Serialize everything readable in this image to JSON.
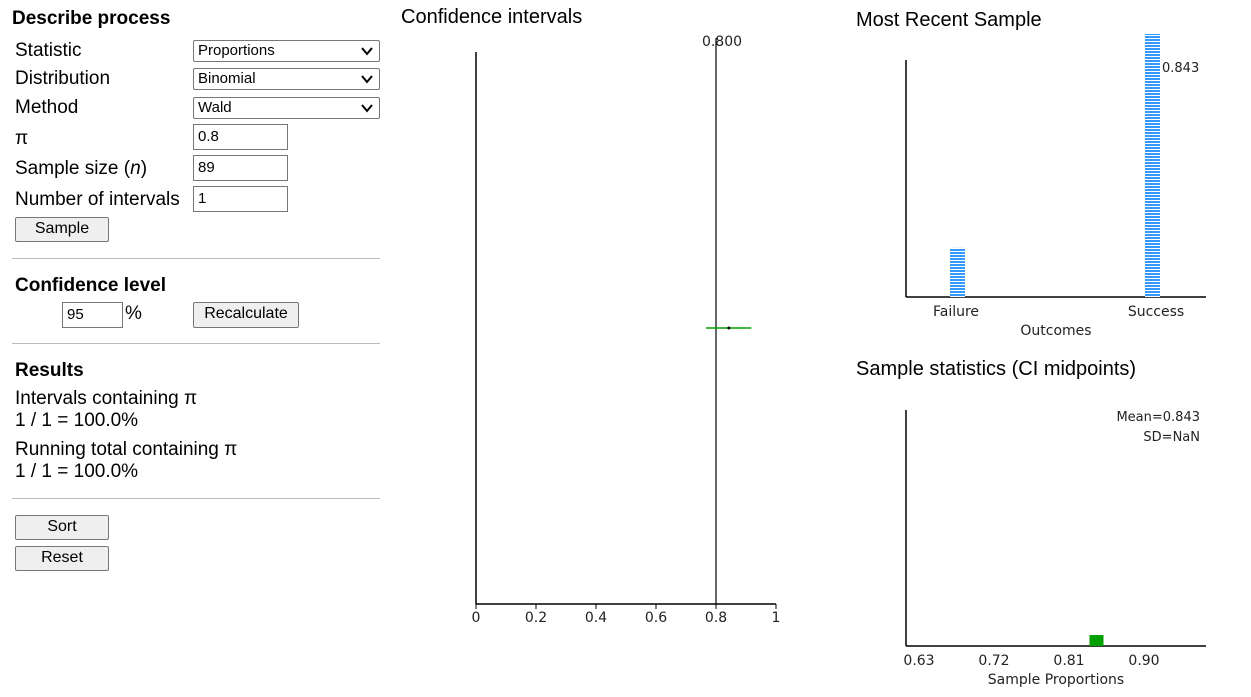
{
  "left": {
    "describe_title": "Describe process",
    "statistic_label": "Statistic",
    "statistic_value": "Proportions",
    "distribution_label": "Distribution",
    "distribution_value": "Binomial",
    "method_label": "Method",
    "method_value": "Wald",
    "pi_label": "π",
    "pi_value": "0.8",
    "sample_size_label": "Sample size (",
    "sample_size_n": "n",
    "sample_size_close": ")",
    "sample_size_value": "89",
    "num_intervals_label": "Number of intervals",
    "num_intervals_value": "1",
    "sample_button": "Sample",
    "confidence_title": "Confidence level",
    "confidence_value": "95",
    "percent_sign": "%",
    "recalculate_button": "Recalculate",
    "results_title": "Results",
    "intervals_containing_label": "Intervals containing π",
    "intervals_containing_value": "1 / 1 = 100.0%",
    "running_total_label": "Running total containing π",
    "running_total_value": "1 / 1 = 100.0%",
    "sort_button": "Sort",
    "reset_button": "Reset"
  },
  "chart_data": [
    {
      "type": "line",
      "title": "Confidence intervals",
      "reference_value": 0.8,
      "reference_label": "0.800",
      "xlim": [
        0,
        1
      ],
      "xticks": [
        "0",
        "0.2",
        "0.4",
        "0.6",
        "0.8",
        "1"
      ],
      "intervals": [
        {
          "lower": 0.767,
          "upper": 0.918,
          "mid": 0.843
        }
      ],
      "colors": {
        "interval": "#00a000",
        "reference": "#000000"
      }
    },
    {
      "type": "bar",
      "title": "Most Recent Sample",
      "categories": [
        "Failure",
        "Success"
      ],
      "values": [
        14,
        75
      ],
      "annotation": "0.843",
      "xlabel": "Outcomes",
      "colors": {
        "bar": "#3399ff"
      }
    },
    {
      "type": "scatter",
      "title": "Sample statistics (CI midpoints)",
      "x": [
        0.843
      ],
      "xticks": [
        "0.63",
        "0.72",
        "0.81",
        "0.90"
      ],
      "xlim": [
        0.63,
        0.99
      ],
      "xlabel": "Sample Proportions",
      "mean_label": "Mean=0.843",
      "sd_label": "SD=NaN",
      "colors": {
        "point": "#00a000"
      }
    }
  ]
}
